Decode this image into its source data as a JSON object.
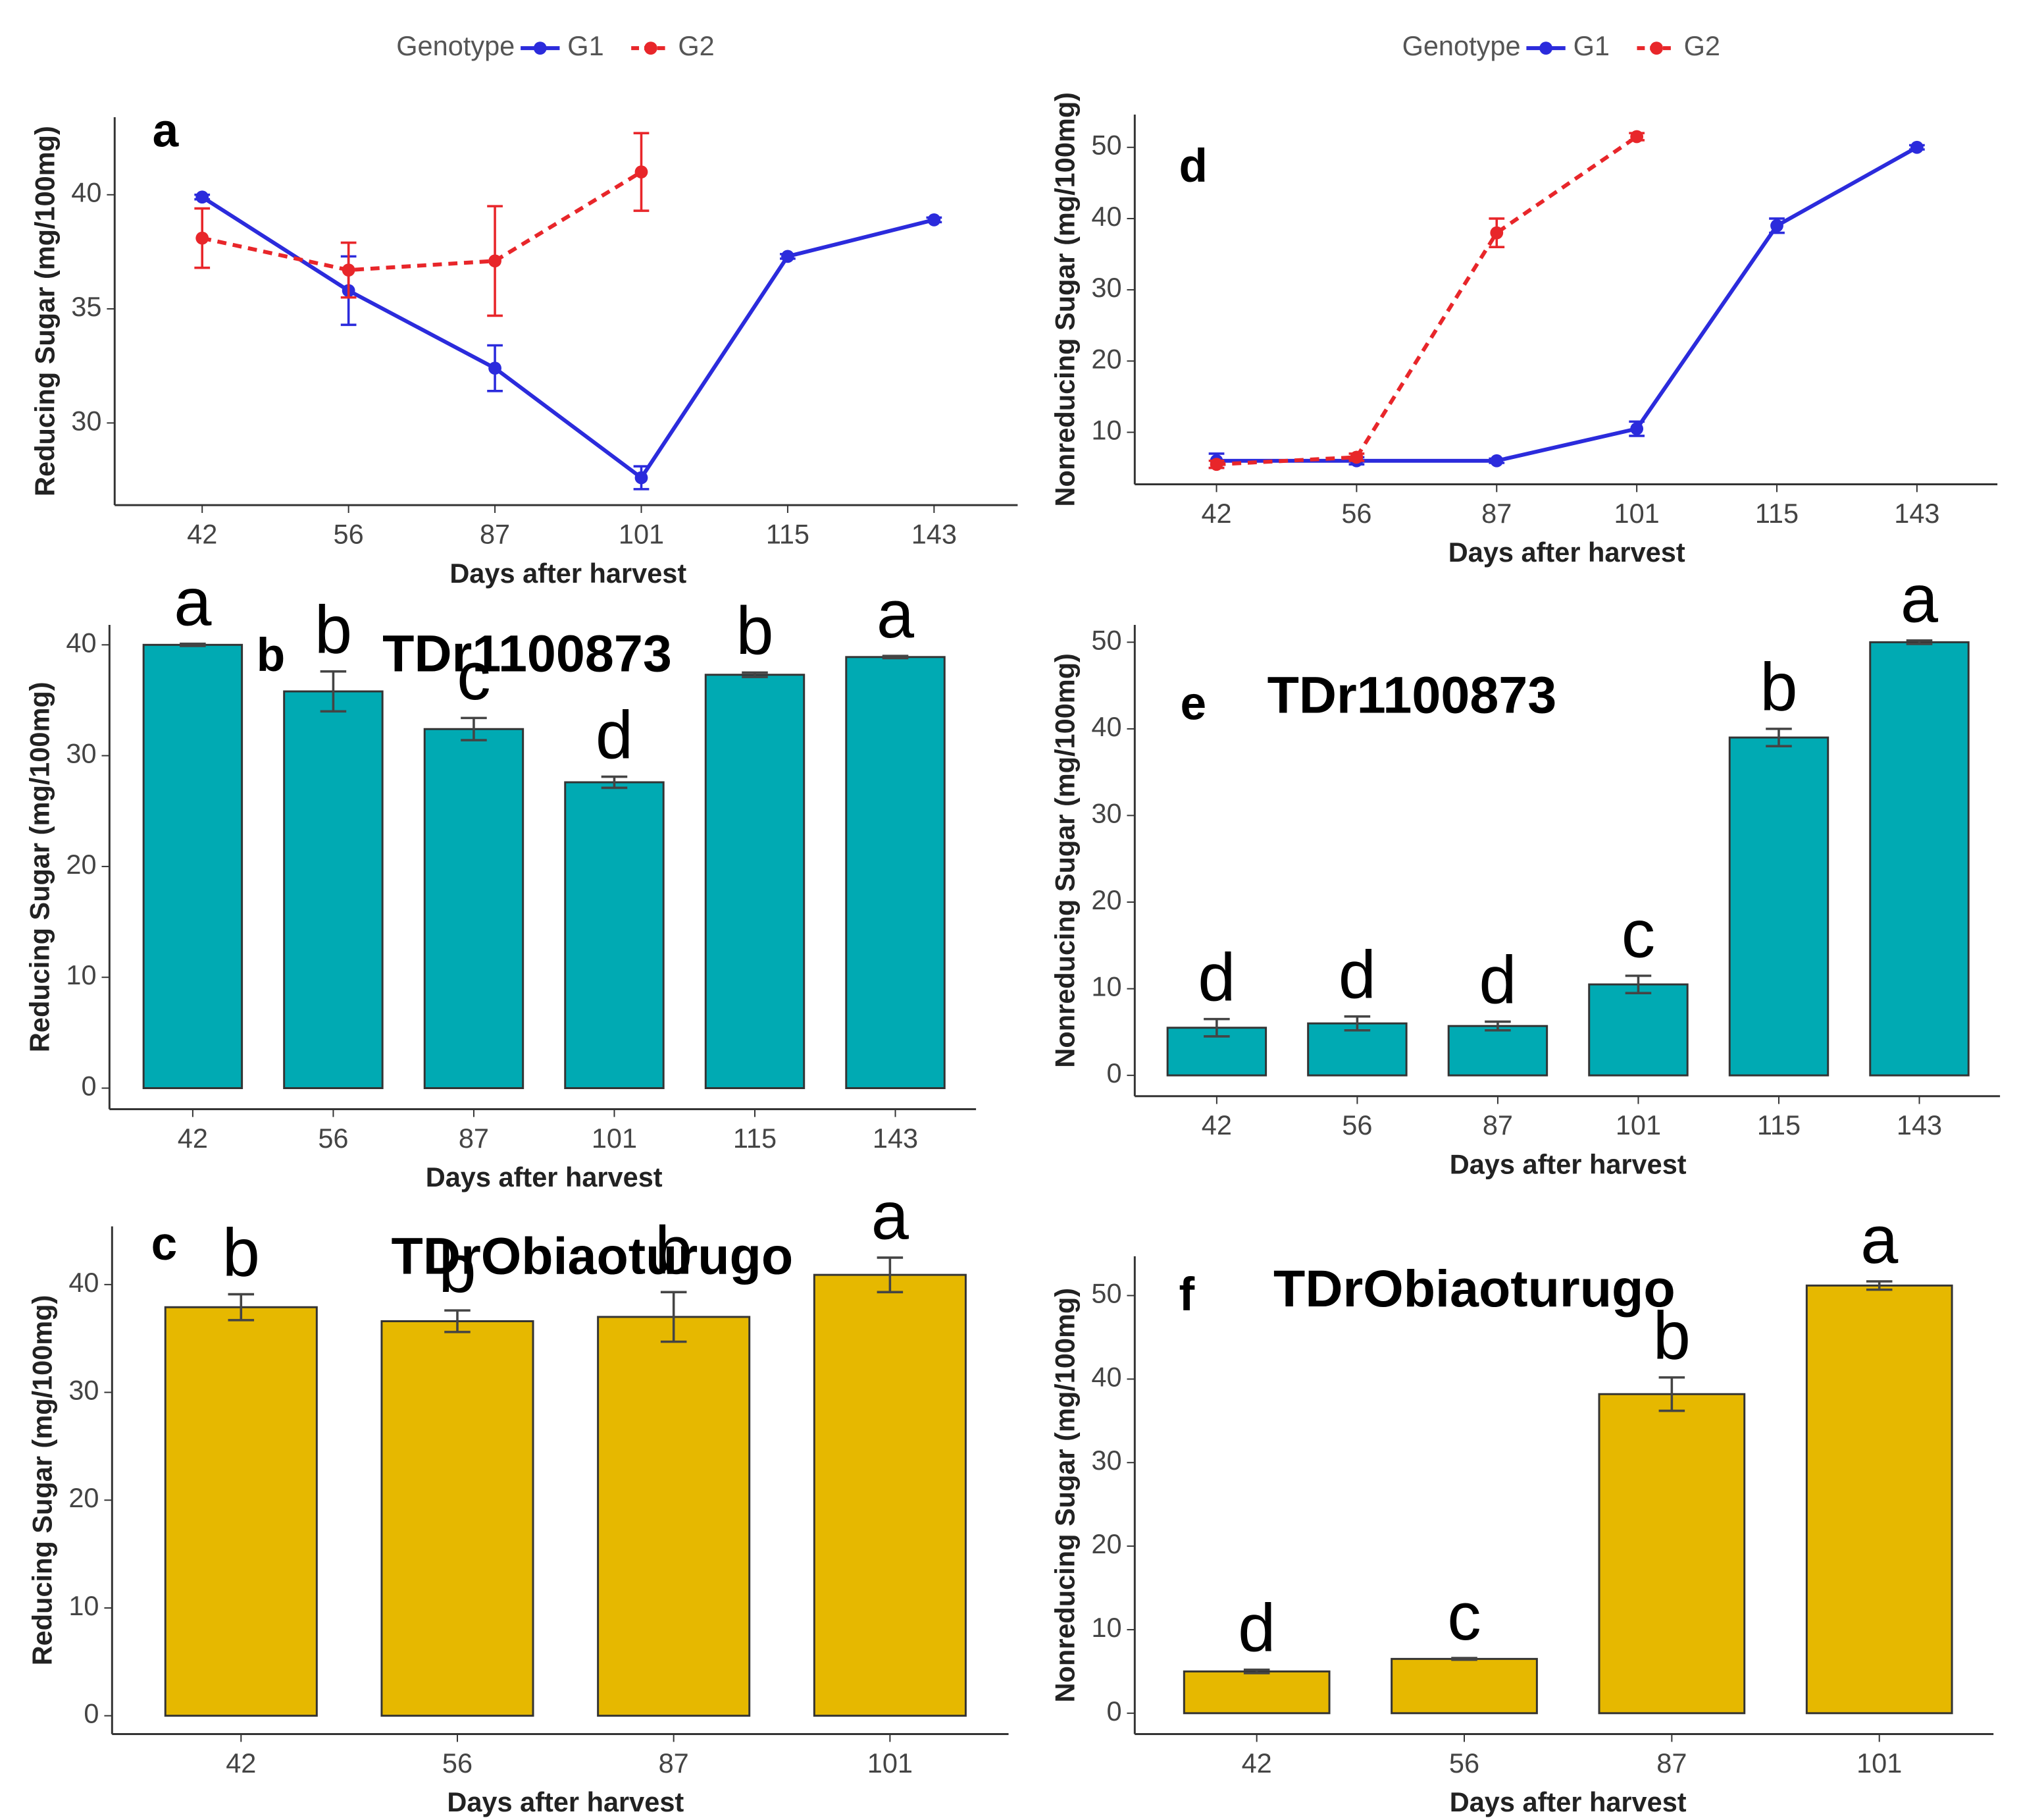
{
  "chart_data": [
    {
      "type": "line",
      "panel": "a",
      "legend_title": "Genotype",
      "x_label": "Days after harvest",
      "y_label": "Reducing Sugar (mg/100mg)",
      "categories": [
        "42",
        "56",
        "87",
        "101",
        "115",
        "143"
      ],
      "series": [
        {
          "name": "G1",
          "color": "#2b2bdc",
          "linestyle": "solid",
          "values": [
            39.9,
            35.8,
            32.4,
            27.6,
            37.3,
            38.9
          ],
          "errors": [
            0.1,
            1.5,
            1.0,
            0.5,
            0.1,
            0.1
          ]
        },
        {
          "name": "G2",
          "color": "#e8262a",
          "linestyle": "dashed",
          "values": [
            38.1,
            36.7,
            37.1,
            41.0,
            null,
            null
          ],
          "errors": [
            1.3,
            1.2,
            2.4,
            1.7,
            null,
            null
          ]
        }
      ],
      "ylim": [
        26.4,
        43.4
      ],
      "yticks": [
        30,
        35,
        40
      ]
    },
    {
      "type": "bar",
      "panel": "b",
      "title": "TDr1100873",
      "x_label": "Days after harvest",
      "y_label": "Reducing Sugar (mg/100mg)",
      "categories": [
        "42",
        "56",
        "87",
        "101",
        "115",
        "143"
      ],
      "color": "#00aab3",
      "values": [
        40.0,
        35.8,
        32.4,
        27.6,
        37.3,
        38.9
      ],
      "errors": [
        0.1,
        1.8,
        1.0,
        0.5,
        0.2,
        0.1
      ],
      "letters": [
        "a",
        "b",
        "c",
        "d",
        "b",
        "a"
      ],
      "ylim": [
        -1.9,
        41.8
      ],
      "yticks": [
        0,
        10,
        20,
        30,
        40
      ]
    },
    {
      "type": "bar",
      "panel": "c",
      "title": "TDrObiaoturugo",
      "x_label": "Days after harvest",
      "y_label": "Reducing Sugar (mg/100mg)",
      "categories": [
        "42",
        "56",
        "87",
        "101"
      ],
      "color": "#e6b800",
      "values": [
        37.9,
        36.6,
        37.0,
        40.9
      ],
      "errors": [
        1.2,
        1.0,
        2.3,
        1.6
      ],
      "letters": [
        "b",
        "b",
        "b",
        "a"
      ],
      "ylim": [
        -1.7,
        45.4
      ],
      "yticks": [
        0,
        10,
        20,
        30,
        40
      ]
    },
    {
      "type": "line",
      "panel": "d",
      "legend_title": "Genotype",
      "x_label": "Days after harvest",
      "y_label": "Nonreducing Sugar (mg/100mg)",
      "categories": [
        "42",
        "56",
        "87",
        "101",
        "115",
        "143"
      ],
      "series": [
        {
          "name": "G1",
          "color": "#2b2bdc",
          "linestyle": "solid",
          "values": [
            6.0,
            6.0,
            6.0,
            10.5,
            39.0,
            50.0
          ],
          "errors": [
            1.0,
            0.5,
            0.3,
            1.0,
            1.0,
            0.3
          ]
        },
        {
          "name": "G2",
          "color": "#e8262a",
          "linestyle": "dashed",
          "values": [
            5.5,
            6.5,
            38.0,
            51.5,
            null,
            null
          ],
          "errors": [
            0.5,
            0.5,
            2.0,
            0.5,
            null,
            null
          ]
        }
      ],
      "ylim": [
        2.7,
        54.6
      ],
      "yticks": [
        10,
        20,
        30,
        40,
        50
      ]
    },
    {
      "type": "bar",
      "panel": "e",
      "title": "TDr1100873",
      "x_label": "Days after harvest",
      "y_label": "Nonreducing Sugar (mg/100mg)",
      "categories": [
        "42",
        "56",
        "87",
        "101",
        "115",
        "143"
      ],
      "color": "#00aab3",
      "values": [
        5.5,
        6.0,
        5.7,
        10.5,
        39.0,
        50.0
      ],
      "errors": [
        1.0,
        0.8,
        0.5,
        1.0,
        1.0,
        0.2
      ],
      "letters": [
        "d",
        "d",
        "d",
        "c",
        "b",
        "a"
      ],
      "ylim": [
        -2.4,
        52.0
      ],
      "yticks": [
        0,
        10,
        20,
        30,
        40,
        50
      ]
    },
    {
      "type": "bar",
      "panel": "f",
      "title": "TDrObiaoturugo",
      "x_label": "Days after harvest",
      "y_label": "Nonreducing Sugar (mg/100mg)",
      "categories": [
        "42",
        "56",
        "87",
        "101"
      ],
      "color": "#e6b800",
      "values": [
        5.0,
        6.5,
        38.2,
        51.2
      ],
      "errors": [
        0.2,
        0.1,
        2.0,
        0.5
      ],
      "letters": [
        "d",
        "c",
        "b",
        "a"
      ],
      "ylim": [
        -2.5,
        54.7
      ],
      "yticks": [
        0,
        10,
        20,
        30,
        40,
        50
      ]
    }
  ]
}
